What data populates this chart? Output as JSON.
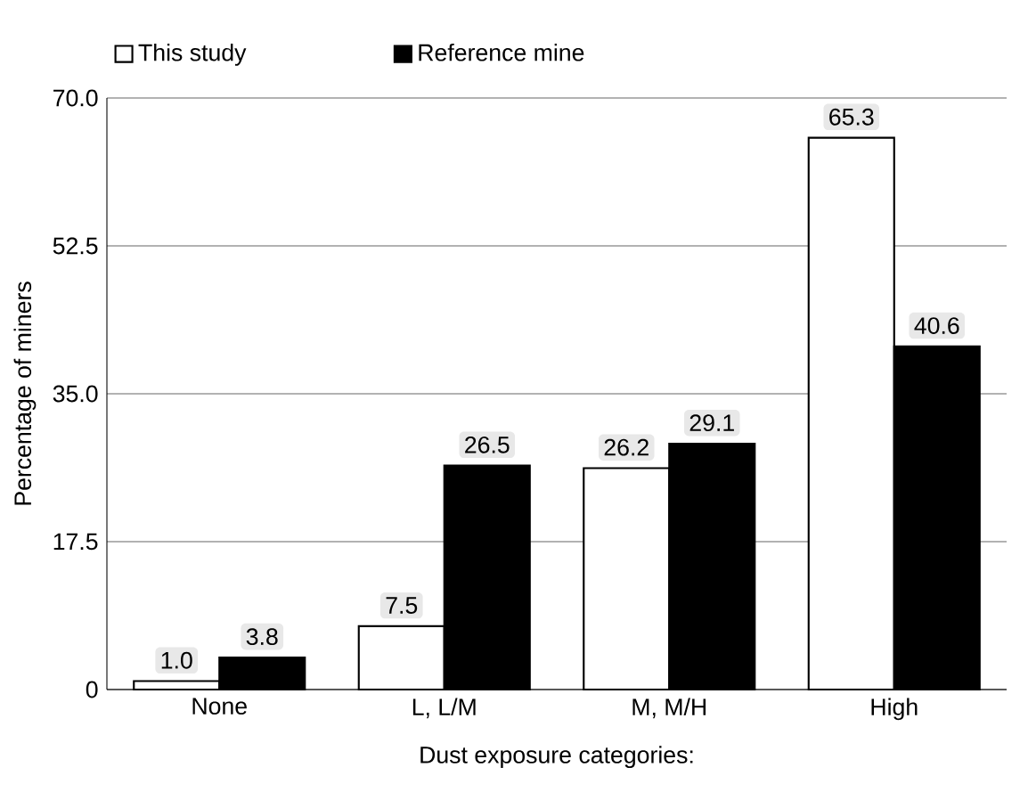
{
  "chart_data": {
    "type": "bar",
    "xlabel": "Dust exposure categories:",
    "ylabel": "Percentage of miners",
    "categories": [
      "None",
      "L, L/M",
      "M, M/H",
      "High"
    ],
    "series": [
      {
        "name": "This study",
        "color": "#ffffff",
        "values": [
          1.0,
          7.5,
          26.2,
          65.3
        ],
        "value_labels": [
          "1.0",
          "7.5",
          "26.2",
          "65.3"
        ]
      },
      {
        "name": "Reference mine",
        "color": "#000000",
        "values": [
          3.8,
          26.5,
          29.1,
          40.6
        ],
        "value_labels": [
          "3.8",
          "26.5",
          "29.1",
          "40.6"
        ]
      }
    ],
    "ylim": [
      0,
      70
    ],
    "yticks": [
      {
        "value": 0,
        "label": "0"
      },
      {
        "value": 17.5,
        "label": "17.5"
      },
      {
        "value": 35,
        "label": "35.0"
      },
      {
        "value": 52.5,
        "label": "52.5"
      },
      {
        "value": 70,
        "label": "70.0"
      }
    ],
    "grid": "y",
    "legend": "top"
  }
}
